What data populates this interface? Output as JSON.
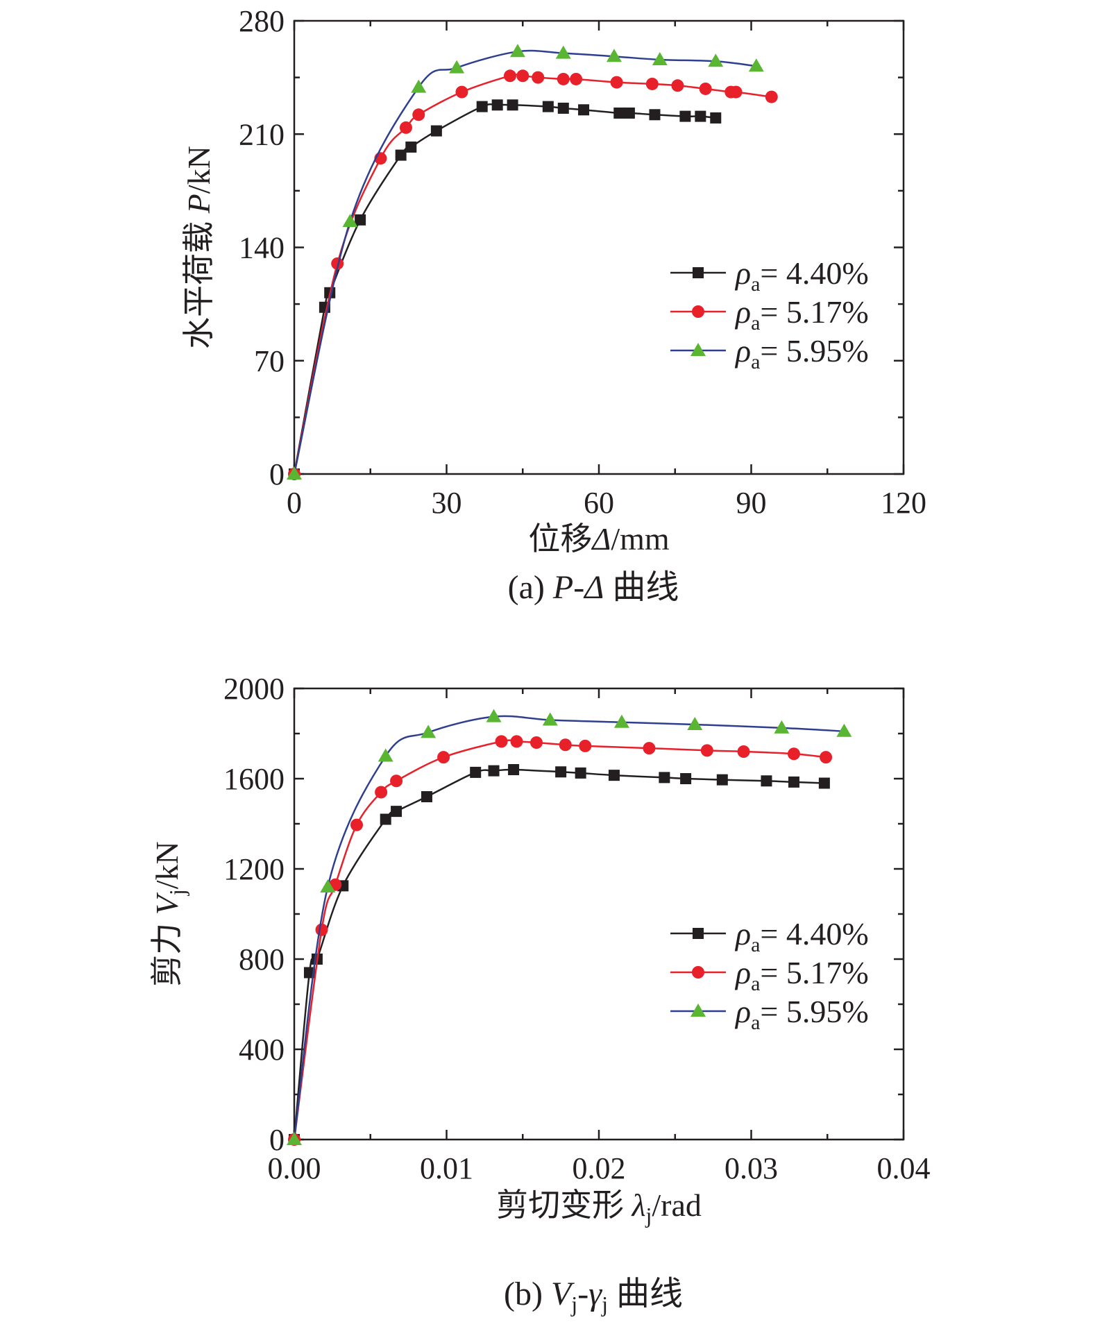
{
  "colors": {
    "series_a": "#231f20",
    "series_b": "#e8202a",
    "series_c": "#2e3f8f",
    "marker_c": "#5ab632",
    "axis": "#231f20"
  },
  "chart_data": [
    {
      "type": "line",
      "caption": {
        "prefix": "(a) ",
        "italic": "P-Δ",
        "suffix": " 曲线"
      },
      "xlabel": {
        "text": "位移",
        "italic": "Δ",
        "unit": "/mm"
      },
      "ylabel": {
        "text": "水平荷载 ",
        "italic": "P",
        "unit": "/kN"
      },
      "xlim": [
        0,
        120
      ],
      "ylim": [
        0,
        280
      ],
      "xticks": [
        "0",
        "30",
        "60",
        "90",
        "120"
      ],
      "yticks": [
        "0",
        "70",
        "140",
        "210",
        "280"
      ],
      "xtick_values": [
        0,
        30,
        60,
        90,
        120
      ],
      "ytick_values": [
        0,
        70,
        140,
        210,
        280
      ],
      "legend_position": "right",
      "series": [
        {
          "name": "ρa= 4.40%",
          "sym": "ρ",
          "sub": "a",
          "value": "= 4.40%",
          "marker": "square",
          "color": "#231f20",
          "x": [
            0,
            6,
            7,
            13,
            21,
            23,
            28,
            37,
            40,
            43,
            50,
            53,
            57,
            64,
            66,
            71,
            77,
            80,
            83
          ],
          "y": [
            0,
            103,
            112,
            157,
            197,
            202,
            212,
            227,
            228,
            228,
            227,
            226,
            225,
            223,
            223,
            222,
            221,
            221,
            220
          ]
        },
        {
          "name": "ρa= 5.17%",
          "sym": "ρ",
          "sub": "a",
          "value": "= 5.17%",
          "marker": "circle",
          "color": "#e8202a",
          "x": [
            0,
            8.5,
            17,
            22,
            24.5,
            33,
            42.5,
            45,
            48,
            53,
            55.5,
            63.5,
            70.5,
            75.5,
            81,
            86,
            87,
            94
          ],
          "y": [
            0,
            130,
            195,
            214,
            222,
            236,
            246,
            246,
            245,
            244,
            244,
            242,
            241,
            240,
            238,
            236,
            236,
            233
          ]
        },
        {
          "name": "ρa= 5.95%",
          "sym": "ρ",
          "sub": "a",
          "value": "= 5.95%",
          "marker": "triangle",
          "color": "#2e3f8f",
          "marker_color": "#5ab632",
          "x": [
            0,
            11,
            24.5,
            32,
            44,
            53,
            63,
            72,
            83,
            91
          ],
          "y": [
            0,
            156,
            239,
            251,
            261,
            260,
            258,
            256,
            255,
            252
          ]
        }
      ]
    },
    {
      "type": "line",
      "caption": {
        "prefix": "(b) ",
        "V": "V",
        "j1": "j",
        "dash": "-",
        "gamma": "γ",
        "j2": "j",
        "suffix": " 曲线"
      },
      "xlabel": {
        "text": "剪切变形 ",
        "italic": "λ",
        "sub": "j",
        "unit": "/rad"
      },
      "ylabel": {
        "text": "剪力 ",
        "italic": "V",
        "sub": "j",
        "unit": "/kN"
      },
      "xlim": [
        0,
        0.04
      ],
      "ylim": [
        0,
        2000
      ],
      "xticks": [
        "0.00",
        "0.01",
        "0.02",
        "0.03",
        "0.04"
      ],
      "yticks": [
        "0",
        "400",
        "800",
        "1200",
        "1600",
        "2000"
      ],
      "xtick_values": [
        0,
        0.01,
        0.02,
        0.03,
        0.04
      ],
      "ytick_values": [
        0,
        400,
        800,
        1200,
        1600,
        2000
      ],
      "legend_position": "right",
      "series": [
        {
          "name": "ρa= 4.40%",
          "sym": "ρ",
          "sub": "a",
          "value": "= 4.40%",
          "marker": "square",
          "color": "#231f20",
          "x": [
            0,
            0.001,
            0.0015,
            0.0032,
            0.006,
            0.0067,
            0.0087,
            0.0119,
            0.0131,
            0.0144,
            0.0175,
            0.0188,
            0.021,
            0.0243,
            0.0257,
            0.0281,
            0.031,
            0.0328,
            0.0348
          ],
          "y": [
            0,
            740,
            800,
            1125,
            1420,
            1455,
            1520,
            1628,
            1635,
            1640,
            1630,
            1625,
            1615,
            1605,
            1600,
            1595,
            1590,
            1585,
            1580
          ]
        },
        {
          "name": "ρa= 5.17%",
          "sym": "ρ",
          "sub": "a",
          "value": "= 5.17%",
          "marker": "circle",
          "color": "#e8202a",
          "x": [
            0,
            0.0018,
            0.0027,
            0.0041,
            0.0057,
            0.0067,
            0.0098,
            0.0136,
            0.0146,
            0.0159,
            0.0178,
            0.0191,
            0.0233,
            0.0271,
            0.0295,
            0.0328,
            0.0349
          ],
          "y": [
            0,
            930,
            1130,
            1395,
            1540,
            1590,
            1695,
            1765,
            1765,
            1760,
            1750,
            1745,
            1735,
            1725,
            1720,
            1710,
            1695
          ]
        },
        {
          "name": "ρa= 5.95%",
          "sym": "ρ",
          "sub": "a",
          "value": "= 5.95%",
          "marker": "triangle",
          "color": "#2e3f8f",
          "marker_color": "#5ab632",
          "x": [
            0,
            0.0022,
            0.006,
            0.0088,
            0.0131,
            0.0168,
            0.0215,
            0.0263,
            0.032,
            0.0361
          ],
          "y": [
            0,
            1120,
            1700,
            1805,
            1875,
            1860,
            1850,
            1840,
            1825,
            1810
          ]
        }
      ]
    }
  ]
}
